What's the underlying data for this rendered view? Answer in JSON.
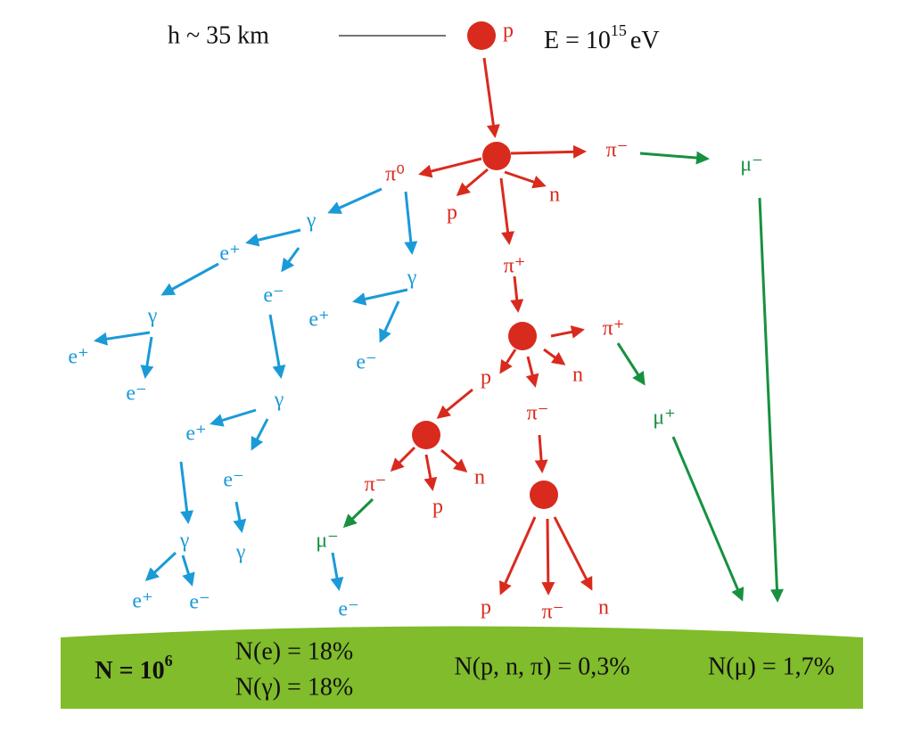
{
  "header": {
    "altitude": "h ~ 35 km",
    "primary": "p",
    "energy": {
      "base": "E = 10",
      "exponent": "15",
      "unit": "eV"
    }
  },
  "particles": [
    "π⁰",
    "p",
    "n",
    "π⁻",
    "μ⁻",
    "π⁺",
    "π⁺",
    "p",
    "n",
    "π⁻",
    "μ⁺",
    "π⁻",
    "n",
    "p",
    "μ⁻",
    "e⁻",
    "p",
    "π⁻",
    "n",
    "γ",
    "e⁺",
    "e⁻",
    "γ",
    "e⁺",
    "e⁻",
    "γ",
    "e⁺",
    "e⁻",
    "γ",
    "e⁺",
    "e⁻",
    "γ",
    "γ",
    "e⁺",
    "e⁻"
  ],
  "ground": {
    "total": {
      "base": "N = 10",
      "exponent": "6"
    },
    "fractions": [
      "N(e) = 18%",
      "N(γ) = 18%",
      "N(p, n, π) = 0,3%",
      "N(μ) = 1,7%"
    ]
  }
}
